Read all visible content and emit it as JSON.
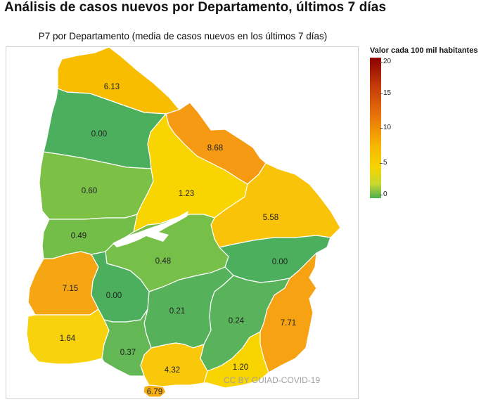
{
  "page_title": "Análisis de casos nuevos por Departamento, últimos 7 días",
  "map": {
    "subtitle": "P7 por Departamento (media de casos nuevos en los últimos 7 días)",
    "departments": [
      {
        "value": "6.13",
        "color": "#f9bd00"
      },
      {
        "value": "0.00",
        "color": "#4caf5e"
      },
      {
        "value": "8.68",
        "color": "#f59a12"
      },
      {
        "value": "0.60",
        "color": "#7cc046"
      },
      {
        "value": "1.23",
        "color": "#f8d400"
      },
      {
        "value": "5.58",
        "color": "#f9c30a"
      },
      {
        "value": "0.49",
        "color": "#72be48"
      },
      {
        "value": "0.48",
        "color": "#76bf48"
      },
      {
        "value": "0.00",
        "color": "#4caf5e"
      },
      {
        "value": "7.15",
        "color": "#f6a613"
      },
      {
        "value": "0.00",
        "color": "#4caf5e"
      },
      {
        "value": "0.21",
        "color": "#55b25a"
      },
      {
        "value": "0.24",
        "color": "#58b35a"
      },
      {
        "value": "7.71",
        "color": "#f6a213"
      },
      {
        "value": "1.64",
        "color": "#f7d20d"
      },
      {
        "value": "0.37",
        "color": "#63b754"
      },
      {
        "value": "4.32",
        "color": "#f9c80a"
      },
      {
        "value": "1.20",
        "color": "#f8d400"
      },
      {
        "value": "6.79",
        "color": "#f6ad10"
      }
    ]
  },
  "legend": {
    "title": "Valor cada 100 mil habitantes",
    "ticks": [
      "20",
      "15",
      "10",
      "5",
      "0"
    ]
  },
  "watermark": "CC BY GUIAD-COVID-19"
}
